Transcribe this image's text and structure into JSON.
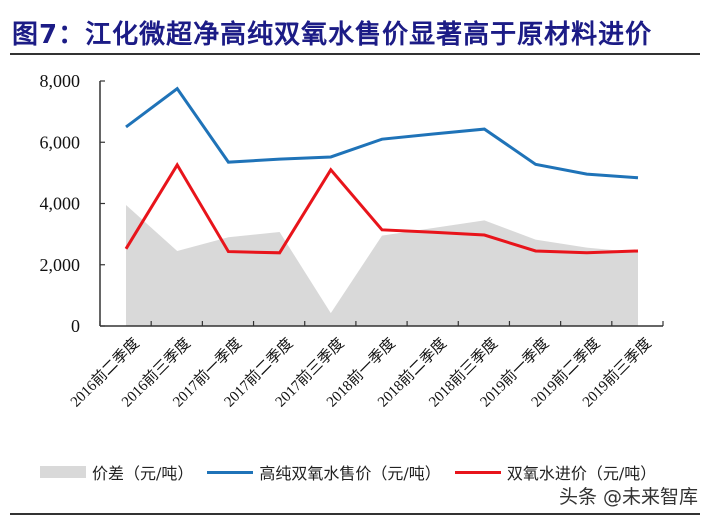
{
  "figure": {
    "title": "图7：江化微超净高纯双氧水售价显著高于原材料进价",
    "watermark": "头条 @未来智库"
  },
  "colors": {
    "title": "#1c1c86",
    "area": "#d9d9d9",
    "sale_price": "#1f73b8",
    "purchase_price": "#e8141b",
    "axis": "#333333"
  },
  "legend": [
    {
      "label": "价差（元/吨）",
      "type": "area",
      "color": "#d9d9d9"
    },
    {
      "label": "高纯双氧水售价（元/吨）",
      "type": "line",
      "color": "#1f73b8"
    },
    {
      "label": "双氧水进价（元/吨）",
      "type": "line",
      "color": "#e8141b"
    }
  ],
  "chart_data": {
    "type": "line",
    "title": "图7：江化微超净高纯双氧水售价显著高于原材料进价",
    "xlabel": "",
    "ylabel": "",
    "ylim": [
      0,
      8000
    ],
    "yticks": [
      0,
      2000,
      4000,
      6000,
      8000
    ],
    "ytick_labels": [
      "0",
      "2,000",
      "4,000",
      "6,000",
      "8,000"
    ],
    "grid": false,
    "legend_position": "bottom",
    "categories": [
      "2016前二季度",
      "2016前三季度",
      "2017前一季度",
      "2017前二季度",
      "2017前三季度",
      "2018前一季度",
      "2018前二季度",
      "2018前三季度",
      "2019前一季度",
      "2019前二季度",
      "2019前三季度"
    ],
    "series": [
      {
        "name": "价差（元/吨）",
        "type": "area",
        "values": [
          3950,
          2450,
          2900,
          3070,
          420,
          2950,
          3200,
          3450,
          2820,
          2560,
          2400
        ]
      },
      {
        "name": "高纯双氧水售价（元/吨）",
        "type": "line",
        "values": [
          6500,
          7750,
          5350,
          5450,
          5520,
          6100,
          6270,
          6430,
          5280,
          4960,
          4840
        ]
      },
      {
        "name": "双氧水进价（元/吨）",
        "type": "line",
        "values": [
          2520,
          5260,
          2430,
          2390,
          5100,
          3140,
          3060,
          2970,
          2450,
          2390,
          2450
        ]
      }
    ]
  }
}
